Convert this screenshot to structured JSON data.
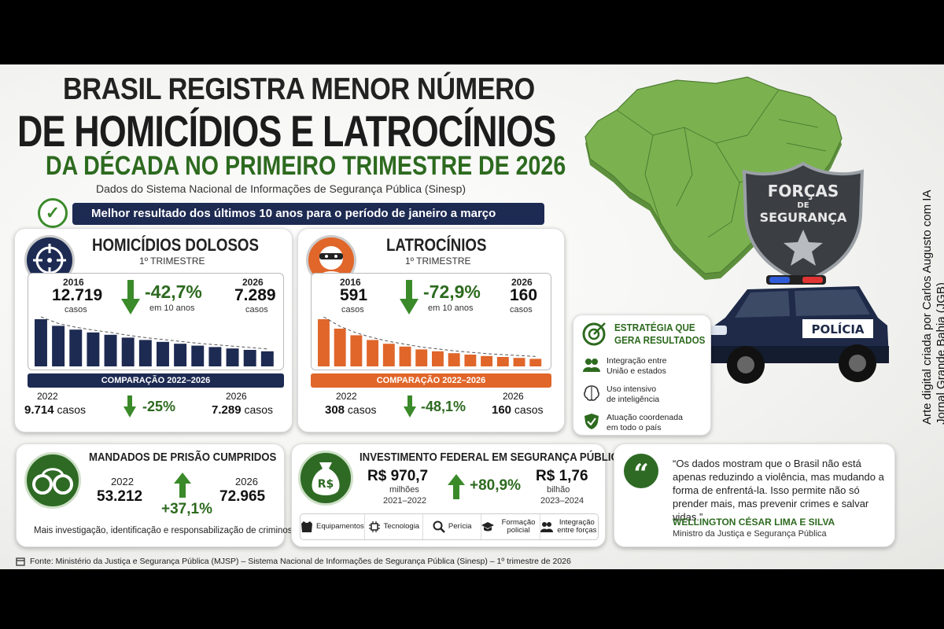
{
  "header": {
    "line1": "BRASIL REGISTRA MENOR NÚMERO",
    "line2": "DE HOMICÍDIOS E LATROCÍNIOS",
    "line3": "DA DÉCADA NO PRIMEIRO TRIMESTRE DE 2026",
    "subtitle": "Dados do Sistema Nacional de Informações de Segurança Pública (Sinesp)",
    "ribbon": "Melhor resultado dos últimos 10 anos para o período de janeiro a março"
  },
  "homicidios": {
    "title": "HOMICÍDIOS DOLOSOS",
    "period": "1º TRIMESTRE",
    "year_start": "2016",
    "value_start": "12.719",
    "unit_start": "casos",
    "change": "-42,7%",
    "change_note": "em 10 anos",
    "year_end": "2026",
    "value_end": "7.289",
    "unit_end": "casos",
    "bar_levels": [
      1.0,
      0.86,
      0.78,
      0.72,
      0.67,
      0.61,
      0.56,
      0.52,
      0.48,
      0.44,
      0.41,
      0.38,
      0.35,
      0.32
    ],
    "comparison_label": "COMPARAÇÃO 2022–2026",
    "cmp_year_a": "2022",
    "cmp_value_a": "9.714",
    "cmp_unit_a": "casos",
    "cmp_change": "-25%",
    "cmp_year_b": "2026",
    "cmp_value_b": "7.289",
    "cmp_unit_b": "casos"
  },
  "latrocinios": {
    "title": "LATROCÍNIOS",
    "period": "1º TRIMESTRE",
    "year_start": "2016",
    "value_start": "591",
    "unit_start": "casos",
    "change": "-72,9%",
    "change_note": "em 10 anos",
    "year_end": "2026",
    "value_end": "160",
    "unit_end": "casos",
    "bar_levels": [
      1.0,
      0.8,
      0.66,
      0.56,
      0.48,
      0.42,
      0.36,
      0.32,
      0.28,
      0.25,
      0.22,
      0.2,
      0.18,
      0.16
    ],
    "comparison_label": "COMPARAÇÃO 2022–2026",
    "cmp_year_a": "2022",
    "cmp_value_a": "308",
    "cmp_unit_a": "casos",
    "cmp_change": "-48,1%",
    "cmp_year_b": "2026",
    "cmp_value_b": "160",
    "cmp_unit_b": "casos"
  },
  "mandados": {
    "title": "MANDADOS DE PRISÃO CUMPRIDOS",
    "year_a": "2022",
    "value_a": "53.212",
    "change": "+37,1%",
    "year_b": "2026",
    "value_b": "72.965",
    "note": "Mais investigação, identificação e responsabilização de criminosos."
  },
  "investimento": {
    "title": "INVESTIMENTO FEDERAL EM SEGURANÇA PÚBLICA",
    "value_a": "R$ 970,7",
    "unit_a": "milhões",
    "period_a": "2021–2022",
    "change": "+80,9%",
    "value_b": "R$ 1,76",
    "unit_b": "bilhão",
    "period_b": "2023–2024",
    "money_label": "R$",
    "items": [
      {
        "icon": "vest-icon",
        "label": "Equipamentos"
      },
      {
        "icon": "chip-icon",
        "label": "Tecnologia"
      },
      {
        "icon": "magnifier-icon",
        "label": "Perícia"
      },
      {
        "icon": "graduation-cap-icon",
        "label": "Formação policial"
      },
      {
        "icon": "people-icon",
        "label": "Integração entre forças"
      }
    ]
  },
  "quote": {
    "mark": "“",
    "text": "“Os dados mostram que o Brasil não está apenas reduzindo a violência, mas mudando a forma de enfrentá-la. Isso permite não só prender mais, mas prevenir crimes e salvar vidas.”",
    "author": "WELLINGTON CÉSAR LIMA E SILVA",
    "role": "Ministro da Justiça e Segurança Pública"
  },
  "estrategia": {
    "title_line1": "ESTRATÉGIA QUE",
    "title_line2": "GERA RESULTADOS",
    "items": [
      {
        "icon": "people-icon",
        "line1": "Integração entre",
        "line2": "União e estados"
      },
      {
        "icon": "brain-icon",
        "line1": "Uso intensivo",
        "line2": "de inteligência"
      },
      {
        "icon": "shield-check-icon",
        "line1": "Atuação coordenada",
        "line2": "em todo o país"
      }
    ]
  },
  "badge": {
    "line1": "FORÇAS",
    "line2": "DE",
    "line3": "SEGURANÇA"
  },
  "car_label": "POLÍCIA",
  "source": "Fonte: Ministério da Justiça e Segurança Pública (MJSP) – Sistema Nacional de Informações de Segurança Pública (Sinesp) – 1º trimestre de 2026",
  "credit": {
    "line1": "Arte digital criada por Carlos Augusto com IA",
    "line2": "Jornal Grande Bahia (JGB)"
  },
  "colors": {
    "navy": "#1d2a52",
    "orange": "#e0662a",
    "green": "#2d6a1f",
    "map_green": "#6fa84a"
  }
}
